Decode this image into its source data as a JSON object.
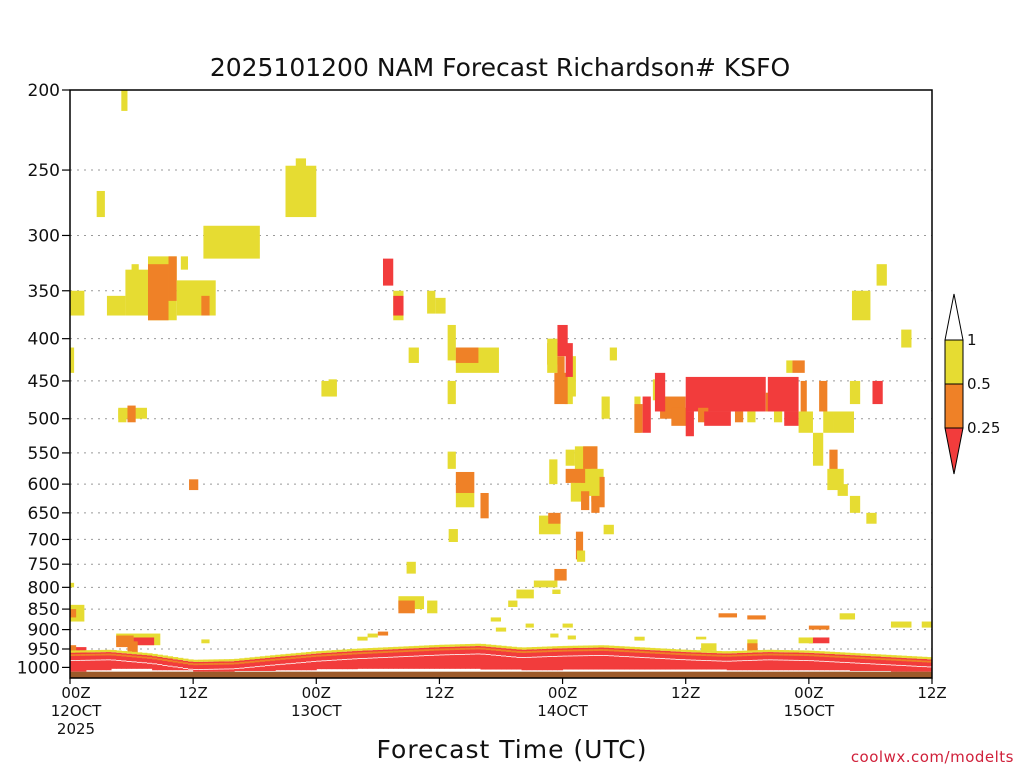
{
  "chart_data": {
    "type": "heatmap",
    "title": "2025101200 NAM Forecast Richardson# KSFO",
    "xlabel": "Forecast Time (UTC)",
    "ylabel": "",
    "xlim": [
      0,
      84
    ],
    "ylim": [
      200,
      1030
    ],
    "yscale": "log-pressure",
    "grid": "horizontal dotted",
    "y_ticks": [
      200,
      250,
      300,
      350,
      400,
      450,
      500,
      550,
      600,
      650,
      700,
      750,
      800,
      850,
      900,
      950,
      1000
    ],
    "x_ticks": [
      {
        "hour": 0,
        "line1": "00Z",
        "line2": "12OCT",
        "line3": "2025"
      },
      {
        "hour": 12,
        "line1": "12Z",
        "line2": "",
        "line3": ""
      },
      {
        "hour": 24,
        "line1": "00Z",
        "line2": "13OCT",
        "line3": ""
      },
      {
        "hour": 36,
        "line1": "12Z",
        "line2": "",
        "line3": ""
      },
      {
        "hour": 48,
        "line1": "00Z",
        "line2": "14OCT",
        "line3": ""
      },
      {
        "hour": 60,
        "line1": "12Z",
        "line2": "",
        "line3": ""
      },
      {
        "hour": 72,
        "line1": "00Z",
        "line2": "15OCT",
        "line3": ""
      },
      {
        "hour": 84,
        "line1": "12Z",
        "line2": "",
        "line3": ""
      }
    ],
    "legend": {
      "placement": "right",
      "bins": [
        {
          "range": "> 1",
          "color": "#ffffff"
        },
        {
          "range": "0.5 - 1",
          "color": "#e6dc32"
        },
        {
          "range": "0.25 - 0.5",
          "color": "#ef8127"
        },
        {
          "range": "< 0.25",
          "color": "#f23c3c"
        }
      ],
      "labels": [
        "1",
        "0.5",
        "0.25"
      ]
    },
    "colors": {
      "y": "#e6dc32",
      "o": "#ef8127",
      "r": "#f23c3c",
      "ground": "#9c5a2a"
    },
    "cells": [
      [
        "y",
        5,
        5.6,
        200,
        212
      ],
      [
        "y",
        2.6,
        3.4,
        265,
        285
      ],
      [
        "y",
        21,
        24,
        247,
        285
      ],
      [
        "y",
        22,
        23,
        242,
        255
      ],
      [
        "y",
        13,
        18.5,
        292,
        320
      ],
      [
        "y",
        0,
        1.4,
        350,
        375
      ],
      [
        "y",
        3.6,
        5.4,
        355,
        375
      ],
      [
        "y",
        5.4,
        7.6,
        330,
        375
      ],
      [
        "y",
        6,
        6.7,
        325,
        338
      ],
      [
        "y",
        7.6,
        10.4,
        318,
        380
      ],
      [
        "o",
        7.6,
        9.6,
        325,
        380
      ],
      [
        "o",
        9.6,
        10.4,
        318,
        360
      ],
      [
        "y",
        10.4,
        14.2,
        340,
        375
      ],
      [
        "o",
        12.8,
        13.6,
        355,
        375
      ],
      [
        "y",
        10.8,
        11.5,
        318,
        330
      ],
      [
        "r",
        30.5,
        31.5,
        320,
        345
      ],
      [
        "y",
        31.5,
        32.5,
        350,
        380
      ],
      [
        "r",
        31.5,
        32.5,
        355,
        375
      ],
      [
        "y",
        34.8,
        35.6,
        350,
        373
      ],
      [
        "y",
        35.6,
        36.6,
        357,
        373
      ],
      [
        "y",
        0,
        0.4,
        410,
        440
      ],
      [
        "y",
        33,
        34,
        410,
        428
      ],
      [
        "y",
        36.8,
        37.6,
        385,
        425
      ],
      [
        "y",
        37.6,
        41.8,
        410,
        440
      ],
      [
        "o",
        37.6,
        39.8,
        410,
        428
      ],
      [
        "y",
        36.8,
        37.6,
        450,
        480
      ],
      [
        "y",
        24.5,
        26,
        450,
        470
      ],
      [
        "y",
        25.2,
        26,
        448,
        470
      ],
      [
        "y",
        4.7,
        7.5,
        485,
        500
      ],
      [
        "o",
        5.6,
        6.4,
        482,
        505
      ],
      [
        "y",
        4.7,
        5.5,
        487,
        505
      ],
      [
        "o",
        11.6,
        12.5,
        592,
        610
      ],
      [
        "r",
        47.5,
        48.5,
        385,
        420
      ],
      [
        "o",
        46.5,
        47.5,
        405,
        430
      ],
      [
        "y",
        46.5,
        47.5,
        400,
        440
      ],
      [
        "o",
        47.5,
        48.2,
        420,
        450
      ],
      [
        "y",
        48.5,
        49.3,
        420,
        470
      ],
      [
        "y",
        48.2,
        49.0,
        440,
        480
      ],
      [
        "o",
        47.2,
        48.5,
        440,
        480
      ],
      [
        "r",
        48.3,
        49.0,
        405,
        445
      ],
      [
        "y",
        51.8,
        52.6,
        470,
        500
      ],
      [
        "y",
        52.6,
        53.3,
        410,
        425
      ],
      [
        "y",
        46.7,
        47.5,
        560,
        600
      ],
      [
        "y",
        48.3,
        49.2,
        545,
        570
      ],
      [
        "y",
        49.2,
        51.4,
        540,
        620
      ],
      [
        "o",
        50.0,
        51.4,
        540,
        575
      ],
      [
        "o",
        48.3,
        50.2,
        575,
        598
      ],
      [
        "y",
        48.8,
        49.8,
        598,
        630
      ],
      [
        "o",
        49.8,
        50.6,
        612,
        645
      ],
      [
        "y",
        50.8,
        52.0,
        575,
        630
      ],
      [
        "o",
        50.8,
        51.6,
        620,
        650
      ],
      [
        "o",
        51.6,
        52.1,
        588,
        640
      ],
      [
        "y",
        52.0,
        53.0,
        672,
        690
      ],
      [
        "y",
        45.7,
        47.8,
        655,
        690
      ],
      [
        "o",
        46.6,
        47.8,
        650,
        670
      ],
      [
        "o",
        49.3,
        50.0,
        685,
        740
      ],
      [
        "y",
        49.4,
        50.2,
        722,
        745
      ],
      [
        "y",
        36.8,
        37.6,
        548,
        575
      ],
      [
        "o",
        37.6,
        39.4,
        580,
        615
      ],
      [
        "y",
        37.6,
        39.4,
        615,
        640
      ],
      [
        "o",
        40.0,
        40.8,
        615,
        660
      ],
      [
        "y",
        36.9,
        37.8,
        680,
        705
      ],
      [
        "y",
        32.8,
        33.7,
        745,
        770
      ],
      [
        "o",
        47.2,
        48.4,
        760,
        785
      ],
      [
        "y",
        45.2,
        47.5,
        785,
        800
      ],
      [
        "y",
        43.5,
        45.2,
        805,
        825
      ],
      [
        "y",
        42.7,
        43.6,
        830,
        845
      ],
      [
        "y",
        47.0,
        47.8,
        805,
        815
      ],
      [
        "y",
        0,
        0.4,
        790,
        800
      ],
      [
        "y",
        0,
        1.4,
        840,
        880
      ],
      [
        "o",
        0,
        0.6,
        850,
        870
      ],
      [
        "y",
        32.0,
        34.5,
        820,
        850
      ],
      [
        "o",
        32.0,
        33.6,
        830,
        860
      ],
      [
        "y",
        34.8,
        35.8,
        830,
        860
      ],
      [
        "y",
        55.0,
        55.6,
        470,
        520
      ],
      [
        "o",
        55.0,
        55.8,
        480,
        520
      ],
      [
        "r",
        55.8,
        56.6,
        470,
        520
      ],
      [
        "o",
        57.5,
        60.0,
        470,
        500
      ],
      [
        "y",
        56.8,
        57.6,
        448,
        475
      ],
      [
        "r",
        57.0,
        58.0,
        440,
        490
      ],
      [
        "o",
        58.6,
        60.2,
        485,
        510
      ],
      [
        "r",
        60.0,
        67.8,
        445,
        490
      ],
      [
        "r",
        60.0,
        60.8,
        490,
        525
      ],
      [
        "o",
        61.2,
        62.2,
        485,
        505
      ],
      [
        "r",
        61.8,
        64.4,
        490,
        510
      ],
      [
        "o",
        64.8,
        65.6,
        490,
        505
      ],
      [
        "y",
        66.0,
        66.8,
        490,
        505
      ],
      [
        "o",
        67.8,
        68.6,
        465,
        490
      ],
      [
        "r",
        68.0,
        71.0,
        445,
        490
      ],
      [
        "y",
        68.6,
        69.4,
        490,
        505
      ],
      [
        "r",
        69.6,
        71.0,
        490,
        510
      ],
      [
        "o",
        71.2,
        71.8,
        450,
        490
      ],
      [
        "y",
        69.8,
        70.4,
        425,
        440
      ],
      [
        "o",
        70.4,
        71.6,
        425,
        440
      ],
      [
        "y",
        71.0,
        72.4,
        490,
        520
      ],
      [
        "o",
        73.0,
        73.8,
        450,
        490
      ],
      [
        "y",
        72.4,
        73.4,
        520,
        570
      ],
      [
        "y",
        73.4,
        74.4,
        490,
        520
      ],
      [
        "y",
        74.4,
        76.4,
        490,
        520
      ],
      [
        "y",
        76.0,
        77.0,
        450,
        480
      ],
      [
        "r",
        78.2,
        79.2,
        450,
        480
      ],
      [
        "o",
        74.0,
        74.8,
        545,
        590
      ],
      [
        "y",
        73.8,
        75.4,
        575,
        610
      ],
      [
        "y",
        74.8,
        75.8,
        600,
        620
      ],
      [
        "y",
        76.0,
        77.0,
        620,
        650
      ],
      [
        "y",
        77.6,
        78.6,
        650,
        670
      ],
      [
        "y",
        76.2,
        78.0,
        350,
        380
      ],
      [
        "y",
        78.6,
        79.6,
        325,
        345
      ],
      [
        "y",
        81.0,
        82.0,
        390,
        410
      ],
      [
        "y",
        80.0,
        82.0,
        880,
        895
      ],
      [
        "y",
        83.0,
        84.0,
        880,
        895
      ],
      [
        "y",
        75.0,
        76.5,
        860,
        875
      ],
      [
        "y",
        4.5,
        8.8,
        910,
        940
      ],
      [
        "o",
        4.5,
        6.2,
        915,
        945
      ],
      [
        "r",
        6.2,
        8.2,
        920,
        940
      ],
      [
        "o",
        5.6,
        6.6,
        930,
        960
      ],
      [
        "r",
        0,
        1.6,
        945,
        1012
      ],
      [
        "o",
        0,
        0.6,
        940,
        970
      ],
      [
        "y",
        12.8,
        13.6,
        925,
        935
      ],
      [
        "o",
        63.2,
        65.0,
        860,
        870
      ],
      [
        "o",
        66.0,
        67.8,
        865,
        875
      ],
      [
        "r",
        72.0,
        74.0,
        920,
        935
      ],
      [
        "y",
        71.0,
        72.4,
        920,
        935
      ],
      [
        "o",
        72.0,
        74.0,
        890,
        900
      ],
      [
        "y",
        55.0,
        56.0,
        918,
        928
      ],
      [
        "y",
        61.0,
        62.0,
        918,
        925
      ],
      [
        "y",
        61.5,
        63.0,
        935,
        955
      ],
      [
        "y",
        66.0,
        67.0,
        925,
        955
      ],
      [
        "o",
        66.0,
        67.0,
        935,
        955
      ],
      [
        "y",
        41.0,
        42.0,
        870,
        880
      ],
      [
        "y",
        41.5,
        42.5,
        895,
        905
      ],
      [
        "y",
        28.0,
        29.0,
        918,
        928
      ],
      [
        "y",
        29.0,
        30.0,
        910,
        920
      ],
      [
        "o",
        30.0,
        31.0,
        905,
        915
      ],
      [
        "y",
        46.8,
        47.6,
        910,
        920
      ],
      [
        "y",
        44.4,
        45.2,
        885,
        895
      ],
      [
        "y",
        48.0,
        49.0,
        885,
        895
      ],
      [
        "y",
        48.5,
        49.3,
        915,
        925
      ]
    ],
    "surface_layer": [
      [
        0,
        960,
        1008
      ],
      [
        4,
        958,
        1004
      ],
      [
        8,
        968,
        1008
      ],
      [
        12,
        985,
        1012
      ],
      [
        16,
        983,
        1010
      ],
      [
        20,
        972,
        1008
      ],
      [
        24,
        962,
        1005
      ],
      [
        28,
        955,
        1004
      ],
      [
        32,
        950,
        1004
      ],
      [
        36,
        945,
        1004
      ],
      [
        40,
        942,
        1006
      ],
      [
        44,
        952,
        1008
      ],
      [
        48,
        948,
        1006
      ],
      [
        52,
        946,
        1006
      ],
      [
        56,
        952,
        1006
      ],
      [
        60,
        958,
        1006
      ],
      [
        64,
        962,
        1008
      ],
      [
        68,
        958,
        1008
      ],
      [
        72,
        960,
        1008
      ],
      [
        76,
        966,
        1010
      ],
      [
        80,
        972,
        1012
      ],
      [
        84,
        978,
        1012
      ]
    ]
  }
}
